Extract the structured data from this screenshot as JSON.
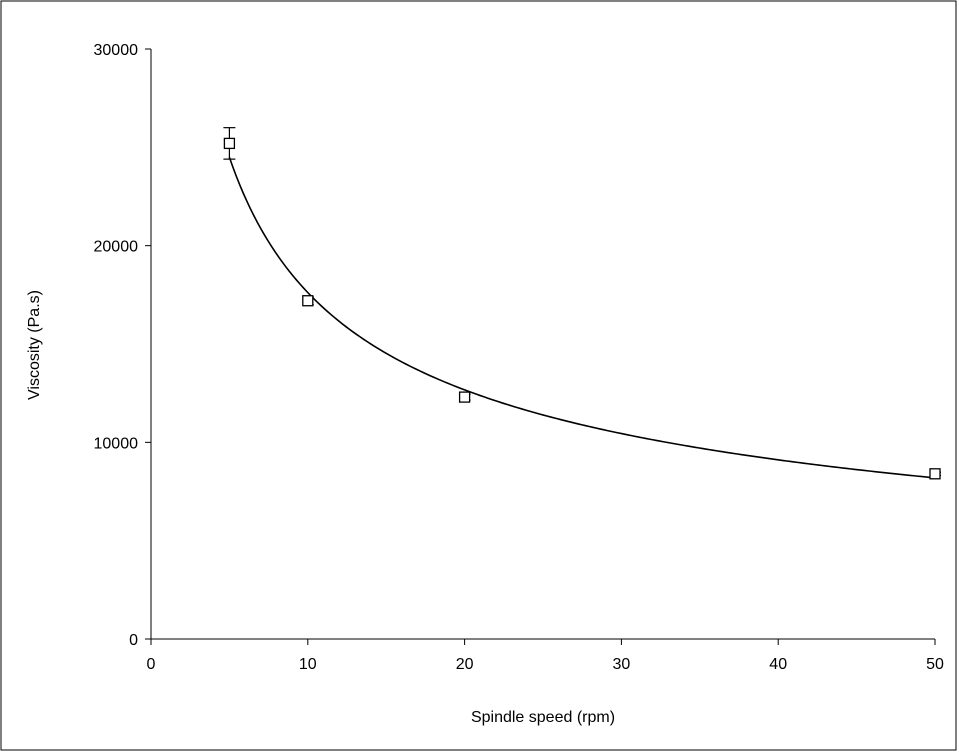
{
  "chart_data": {
    "type": "scatter",
    "title": "",
    "xlabel": "Spindle speed (rpm)",
    "ylabel": "Viscosity (Pa.s)",
    "xlim": [
      0,
      50
    ],
    "ylim": [
      0,
      30000
    ],
    "x_ticks": [
      0,
      10,
      20,
      30,
      40,
      50
    ],
    "y_ticks": [
      0,
      10000,
      20000,
      30000
    ],
    "x_tick_labels": [
      "0",
      "10",
      "20",
      "30",
      "40",
      "50"
    ],
    "y_tick_labels": [
      "0",
      "10000",
      "20000",
      "30000"
    ],
    "grid": false,
    "legend": "none",
    "series": [
      {
        "marker": "open-square",
        "x": [
          5,
          10,
          20,
          50
        ],
        "y": [
          25200,
          17200,
          12300,
          8400
        ],
        "error": [
          800,
          200,
          150,
          80
        ]
      }
    ],
    "trendline": {
      "type": "power",
      "points": [
        {
          "x": 5,
          "y": 24800
        },
        {
          "x": 7,
          "y": 21200
        },
        {
          "x": 10,
          "y": 17700
        },
        {
          "x": 15,
          "y": 14400
        },
        {
          "x": 20,
          "y": 12600
        },
        {
          "x": 25,
          "y": 11300
        },
        {
          "x": 30,
          "y": 10400
        },
        {
          "x": 35,
          "y": 9700
        },
        {
          "x": 40,
          "y": 9100
        },
        {
          "x": 45,
          "y": 8650
        },
        {
          "x": 50,
          "y": 8250
        }
      ]
    }
  }
}
